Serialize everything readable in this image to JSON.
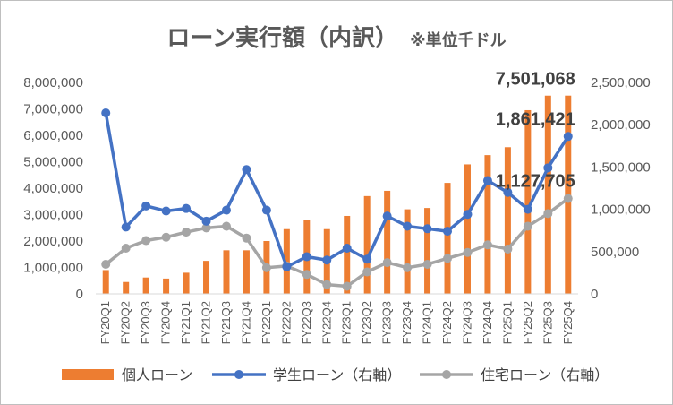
{
  "title": "ローン実行額（内訳）",
  "note": "※単位千ドル",
  "colors": {
    "personal": "#ED7D31",
    "student": "#4472C4",
    "housing": "#A5A5A5"
  },
  "chart_data": {
    "type": "bar",
    "categories": [
      "FY20Q1",
      "FY20Q2",
      "FY20Q3",
      "FY20Q4",
      "FY21Q1",
      "FY21Q2",
      "FY21Q3",
      "FY21Q4",
      "FY22Q1",
      "FY22Q2",
      "FY22Q3",
      "FY22Q4",
      "FY23Q1",
      "FY23Q2",
      "FY23Q3",
      "FY23Q4",
      "FY24Q1",
      "FY24Q2",
      "FY24Q3",
      "FY24Q4",
      "FY25Q1",
      "FY25Q2",
      "FY25Q3",
      "FY25Q4"
    ],
    "series": [
      {
        "name": "個人ローン",
        "type": "bar",
        "axis": "left",
        "values": [
          900000,
          450000,
          620000,
          580000,
          800000,
          1250000,
          1650000,
          1650000,
          2000000,
          2450000,
          2800000,
          2450000,
          2950000,
          3700000,
          3900000,
          3200000,
          3250000,
          4200000,
          4900000,
          5250000,
          5550000,
          6950000,
          7500000,
          7501068
        ]
      },
      {
        "name": "学生ローン（右軸）",
        "type": "line",
        "axis": "right",
        "values": [
          2140000,
          790000,
          1040000,
          980000,
          1010000,
          860000,
          990000,
          1470000,
          990000,
          320000,
          440000,
          400000,
          540000,
          410000,
          920000,
          800000,
          770000,
          740000,
          940000,
          1340000,
          1200000,
          1000000,
          1490000,
          1861421
        ]
      },
      {
        "name": "住宅ローン（右軸）",
        "type": "line",
        "axis": "right",
        "values": [
          350000,
          540000,
          630000,
          670000,
          730000,
          780000,
          800000,
          660000,
          310000,
          330000,
          230000,
          110000,
          90000,
          260000,
          370000,
          310000,
          350000,
          420000,
          490000,
          580000,
          530000,
          800000,
          950000,
          1127705
        ]
      }
    ],
    "left_axis": {
      "min": 0,
      "max": 8000000,
      "ticks": [
        "0",
        "1,000,000",
        "2,000,000",
        "3,000,000",
        "4,000,000",
        "5,000,000",
        "6,000,000",
        "7,000,000",
        "8,000,000"
      ]
    },
    "right_axis": {
      "min": 0,
      "max": 2500000,
      "ticks": [
        "0",
        "500,000",
        "1,000,000",
        "1,500,000",
        "2,000,000",
        "2,500,000"
      ]
    },
    "data_labels": [
      {
        "series": 0,
        "index": 23,
        "text": "7,501,068"
      },
      {
        "series": 1,
        "index": 23,
        "text": "1,861,421"
      },
      {
        "series": 2,
        "index": 23,
        "text": "1,127,705"
      }
    ],
    "legend_position": "bottom",
    "grid": false
  }
}
